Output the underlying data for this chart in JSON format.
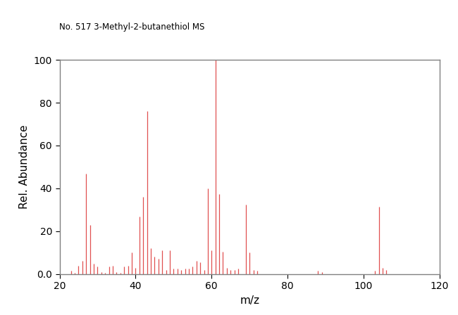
{
  "title": "No. 517 3-Methyl-2-butanethiol MS",
  "xlabel": "m/z",
  "ylabel": "Rel. Abundance",
  "xlim": [
    20,
    120
  ],
  "ylim": [
    0,
    100
  ],
  "xticks": [
    20,
    40,
    60,
    80,
    100,
    120
  ],
  "yticks": [
    0,
    20,
    40,
    60,
    80,
    100
  ],
  "bar_color": "#e05050",
  "background_color": "#ffffff",
  "peaks": [
    [
      23,
      1.5
    ],
    [
      24,
      0.5
    ],
    [
      25,
      4.0
    ],
    [
      26,
      6.0
    ],
    [
      27,
      47.0
    ],
    [
      28,
      23.0
    ],
    [
      29,
      5.0
    ],
    [
      30,
      3.5
    ],
    [
      31,
      1.0
    ],
    [
      32,
      0.5
    ],
    [
      33,
      3.5
    ],
    [
      34,
      4.0
    ],
    [
      35,
      1.0
    ],
    [
      36,
      0.5
    ],
    [
      37,
      3.5
    ],
    [
      38,
      4.0
    ],
    [
      39,
      10.0
    ],
    [
      40,
      3.0
    ],
    [
      41,
      27.0
    ],
    [
      42,
      36.0
    ],
    [
      43,
      76.0
    ],
    [
      44,
      12.0
    ],
    [
      45,
      8.0
    ],
    [
      46,
      7.0
    ],
    [
      47,
      11.0
    ],
    [
      48,
      2.0
    ],
    [
      49,
      11.0
    ],
    [
      50,
      2.5
    ],
    [
      51,
      2.5
    ],
    [
      52,
      2.0
    ],
    [
      53,
      2.5
    ],
    [
      54,
      2.5
    ],
    [
      55,
      3.5
    ],
    [
      56,
      6.0
    ],
    [
      57,
      5.5
    ],
    [
      58,
      2.0
    ],
    [
      59,
      40.0
    ],
    [
      60,
      11.0
    ],
    [
      61,
      100.0
    ],
    [
      62,
      37.5
    ],
    [
      63,
      10.5
    ],
    [
      64,
      3.0
    ],
    [
      65,
      2.0
    ],
    [
      66,
      2.0
    ],
    [
      67,
      2.5
    ],
    [
      69,
      32.5
    ],
    [
      70,
      10.0
    ],
    [
      71,
      2.0
    ],
    [
      72,
      1.5
    ],
    [
      88,
      1.5
    ],
    [
      89,
      1.0
    ],
    [
      103,
      1.5
    ],
    [
      104,
      31.5
    ],
    [
      105,
      3.0
    ],
    [
      106,
      2.0
    ]
  ]
}
